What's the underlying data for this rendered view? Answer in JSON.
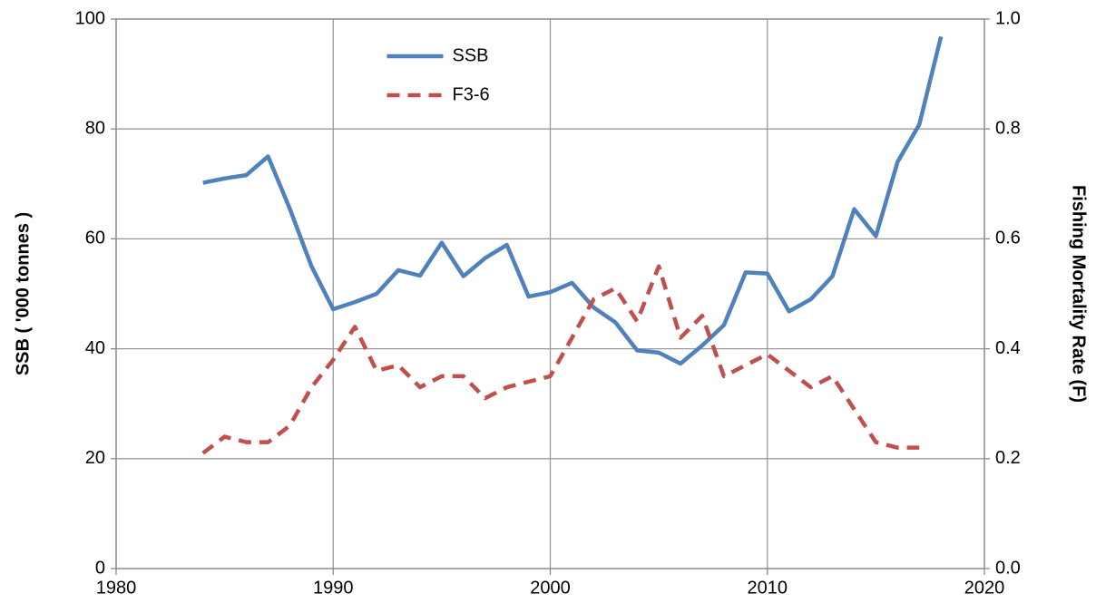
{
  "chart_data": {
    "type": "line",
    "x": [
      1984,
      1985,
      1986,
      1987,
      1988,
      1989,
      1990,
      1991,
      1992,
      1993,
      1994,
      1995,
      1996,
      1997,
      1998,
      1999,
      2000,
      2001,
      2002,
      2003,
      2004,
      2005,
      2006,
      2007,
      2008,
      2009,
      2010,
      2011,
      2012,
      2013,
      2014,
      2015,
      2016,
      2017,
      2018
    ],
    "series": [
      {
        "name": "SSB",
        "color": "#4f81bd",
        "dash": "solid",
        "values": [
          70.2,
          71,
          71.6,
          75,
          65.5,
          55,
          47.2,
          48.5,
          50,
          54.3,
          53.3,
          59.3,
          53.2,
          56.5,
          58.9,
          49.5,
          50.3,
          52,
          47.5,
          44.8,
          39.7,
          39.3,
          37.3,
          40.6,
          44.3,
          53.9,
          53.7,
          46.8,
          49,
          53.2,
          65.4,
          60.5,
          74,
          80.8,
          96.8
        ]
      },
      {
        "name": "F3-6",
        "color": "#c0504d",
        "dash": "dashed",
        "axis": "y2",
        "values": [
          0.21,
          0.24,
          0.23,
          0.23,
          0.26,
          0.33,
          0.38,
          0.44,
          0.36,
          0.37,
          0.33,
          0.35,
          0.35,
          0.31,
          0.33,
          0.34,
          0.35,
          0.42,
          0.49,
          0.51,
          0.45,
          0.55,
          0.42,
          0.46,
          0.35,
          0.37,
          0.39,
          0.36,
          0.33,
          0.35,
          0.29,
          0.23,
          0.22,
          0.22,
          null
        ]
      }
    ],
    "y_label": "SSB ( '000 tonnes )",
    "y2_label": "Fishing Mortality Rate (F)",
    "xlim": [
      1980,
      2020
    ],
    "xticks": [
      1980,
      1990,
      2000,
      2010,
      2020
    ],
    "ylim": [
      0,
      100
    ],
    "yticks": [
      0,
      20,
      40,
      60,
      80,
      100
    ],
    "y2lim": [
      0,
      1
    ],
    "y2ticks": [
      {
        "value": 0,
        "label": "0.0"
      },
      0.2,
      0.4,
      0.6,
      0.8,
      {
        "value": 1,
        "label": "1.0"
      }
    ],
    "grid": true,
    "legend": "top-center"
  }
}
